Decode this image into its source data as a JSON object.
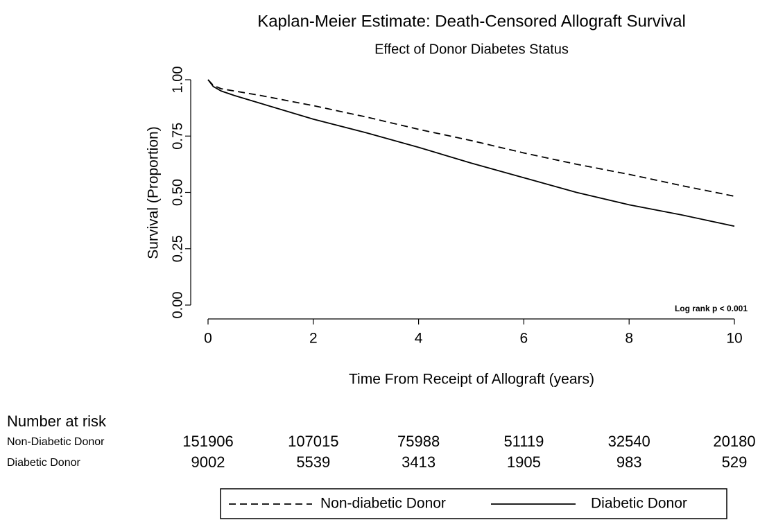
{
  "chart_data": {
    "type": "line",
    "title": "Kaplan-Meier Estimate: Death-Censored Allograft Survival",
    "subtitle": "Effect of Donor Diabetes Status",
    "x_label": "Time From Receipt of Allograft (years)",
    "y_label": "Survival (Proportion)",
    "annotation": "Log rank p < 0.001",
    "x": [
      0,
      0.1,
      0.25,
      0.5,
      1,
      2,
      3,
      4,
      5,
      6,
      7,
      8,
      9,
      10
    ],
    "series": [
      {
        "name": "Non-diabetic Donor",
        "color": "#000000",
        "dash": "dashed",
        "values": [
          1,
          0.975,
          0.96,
          0.95,
          0.93,
          0.885,
          0.835,
          0.78,
          0.73,
          0.675,
          0.625,
          0.58,
          0.53,
          0.483
        ]
      },
      {
        "name": "Diabetic Donor",
        "color": "#000000",
        "dash": "solid",
        "values": [
          1,
          0.97,
          0.95,
          0.93,
          0.895,
          0.825,
          0.765,
          0.7,
          0.63,
          0.565,
          0.5,
          0.445,
          0.4,
          0.35
        ]
      }
    ],
    "xlim": [
      0,
      10
    ],
    "xticks": [
      0,
      2,
      4,
      6,
      8,
      10
    ],
    "ylim": [
      0,
      1
    ],
    "yticks": [
      {
        "value": 0,
        "label": "0.00"
      },
      {
        "value": 0.25,
        "label": "0.25"
      },
      {
        "value": 0.5,
        "label": "0.50"
      },
      {
        "value": 0.75,
        "label": "0.75"
      },
      {
        "value": 1,
        "label": "1.00"
      }
    ],
    "grid": false,
    "legend": "bottom",
    "risk_table": {
      "title": "Number at risk",
      "rows": [
        {
          "name": "Non-Diabetic Donor",
          "values": [
            151906,
            107015,
            75988,
            51119,
            32540,
            20180
          ]
        },
        {
          "name": "Diabetic Donor",
          "values": [
            9002,
            5539,
            3413,
            1905,
            983,
            529
          ]
        }
      ]
    }
  }
}
